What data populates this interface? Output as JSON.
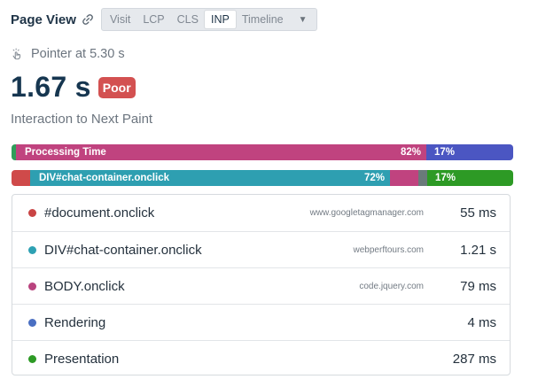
{
  "header": {
    "title": "Page View",
    "tabs": [
      "Visit",
      "LCP",
      "CLS",
      "INP",
      "Timeline"
    ],
    "active_tab": "INP"
  },
  "interaction": {
    "label": "Pointer at 5.30 s",
    "value": "1.67 s",
    "rating": "Poor",
    "metric_name": "Interaction to Next Paint"
  },
  "bars": {
    "processing": {
      "label": "Processing Time",
      "percent_label": "82%",
      "percent": 82,
      "rest_percent_label": "17%",
      "rest_percent": 17,
      "color": "#c0437f",
      "rest_color": "#4b56c2",
      "lead_color": "#2f9e5a"
    },
    "script": {
      "label": "DIV#chat-container.onclick",
      "percent_label": "72%",
      "percent": 72,
      "rest_percent_label": "17%",
      "rest_percent": 17,
      "color": "#2e9fb1",
      "rest_color": "#2d9a25",
      "lead_color": "#cf4a4a",
      "pre_color": "#c0437f",
      "gap_color": "#6a7a7a"
    }
  },
  "events": [
    {
      "name": "#document.onclick",
      "source": "www.googletagmanager.com",
      "value": "55 ms",
      "color": "#c94444"
    },
    {
      "name": "DIV#chat-container.onclick",
      "source": "webperftours.com",
      "value": "1.21 s",
      "color": "#2ea1b3"
    },
    {
      "name": "BODY.onclick",
      "source": "code.jquery.com",
      "value": "79 ms",
      "color": "#b9437e"
    },
    {
      "name": "Rendering",
      "source": "",
      "value": "4 ms",
      "color": "#4a6fc2"
    },
    {
      "name": "Presentation",
      "source": "",
      "value": "287 ms",
      "color": "#2d9a25"
    }
  ]
}
